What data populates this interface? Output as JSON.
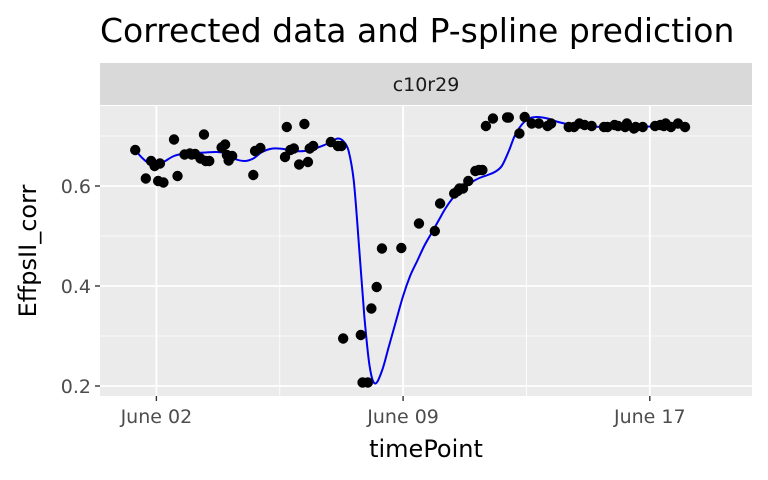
{
  "chart_data": {
    "type": "scatter",
    "title": "Corrected data and P-spline prediction",
    "facet": "c10r29",
    "xlabel": "timePoint",
    "ylabel": "EffpsII_corr",
    "x_ticks": [
      "June 02",
      "June 09",
      "June 17"
    ],
    "x_tick_values": [
      2,
      9,
      16
    ],
    "xlim": [
      0.4,
      18.9
    ],
    "y_ticks": [
      "0.2",
      "0.4",
      "0.6"
    ],
    "y_tick_values": [
      0.2,
      0.4,
      0.6
    ],
    "ylim": [
      0.18,
      0.76
    ],
    "grid": true,
    "legend": "none",
    "colors": {
      "panel": "#ebebeb",
      "strip": "#d9d9d9",
      "grid": "#ffffff",
      "points": "#000000",
      "line": "#0000ee"
    },
    "series": [
      {
        "kind": "points",
        "x": [
          1.4,
          1.7,
          1.85,
          1.95,
          2.05,
          2.1,
          2.2,
          2.5,
          2.6,
          2.8,
          2.95,
          3.0,
          3.1,
          3.25,
          3.35,
          3.4,
          3.5,
          3.85,
          3.95,
          4.0,
          4.05,
          4.15,
          4.75,
          4.8,
          4.95,
          5.65,
          5.7,
          5.8,
          5.9,
          6.05,
          6.2,
          6.3,
          6.35,
          6.45,
          6.95,
          7.15,
          7.25,
          7.3,
          7.8,
          7.85,
          8.0,
          8.1,
          8.25,
          8.4,
          8.95,
          9.45,
          9.9,
          10.05,
          10.45,
          10.55,
          10.6,
          10.7,
          10.85,
          11.05,
          11.15,
          11.25,
          11.35,
          11.55,
          11.95,
          12.0,
          12.3,
          12.45,
          12.65,
          12.85,
          13.1,
          13.2,
          13.7,
          13.85,
          14.0,
          14.15,
          14.35,
          14.7,
          14.8,
          15.0,
          15.1,
          15.3,
          15.35,
          15.55,
          15.6,
          15.8,
          16.15,
          16.3,
          16.4,
          16.45,
          16.6,
          16.8,
          17.0
        ],
        "y": [
          0.672,
          0.615,
          0.65,
          0.64,
          0.61,
          0.645,
          0.607,
          0.693,
          0.62,
          0.663,
          0.665,
          0.663,
          0.664,
          0.655,
          0.703,
          0.65,
          0.65,
          0.677,
          0.683,
          0.662,
          0.651,
          0.66,
          0.622,
          0.67,
          0.676,
          0.658,
          0.718,
          0.672,
          0.675,
          0.643,
          0.724,
          0.648,
          0.675,
          0.68,
          0.688,
          0.68,
          0.68,
          0.295,
          0.302,
          0.207,
          0.207,
          0.355,
          0.398,
          0.475,
          0.476,
          0.525,
          0.51,
          0.565,
          0.585,
          0.59,
          0.595,
          0.595,
          0.61,
          0.63,
          0.632,
          0.632,
          0.72,
          0.735,
          0.737,
          0.737,
          0.705,
          0.738,
          0.725,
          0.725,
          0.72,
          0.725,
          0.718,
          0.718,
          0.725,
          0.722,
          0.72,
          0.718,
          0.718,
          0.722,
          0.72,
          0.718,
          0.725,
          0.715,
          0.718,
          0.718,
          0.72,
          0.722,
          0.72,
          0.725,
          0.718,
          0.725,
          0.718
        ]
      },
      {
        "kind": "line",
        "x": [
          1.4,
          1.6,
          1.8,
          2.0,
          2.2,
          2.5,
          2.8,
          3.1,
          3.4,
          3.7,
          4.0,
          4.2,
          4.5,
          4.75,
          5.0,
          5.3,
          5.6,
          5.9,
          6.2,
          6.5,
          6.8,
          7.0,
          7.15,
          7.3,
          7.45,
          7.6,
          7.75,
          7.9,
          8.05,
          8.2,
          8.4,
          8.6,
          8.8,
          9.0,
          9.2,
          9.4,
          9.6,
          9.8,
          10.0,
          10.2,
          10.4,
          10.6,
          10.8,
          11.0,
          11.2,
          11.4,
          11.6,
          11.8,
          12.0,
          12.2,
          12.5,
          12.8,
          13.1,
          13.4,
          13.8,
          14.2,
          14.6,
          15.0,
          15.4,
          15.8,
          16.2,
          16.6,
          17.0
        ],
        "y": [
          0.672,
          0.656,
          0.645,
          0.642,
          0.648,
          0.66,
          0.665,
          0.666,
          0.667,
          0.668,
          0.665,
          0.655,
          0.65,
          0.655,
          0.668,
          0.675,
          0.674,
          0.67,
          0.67,
          0.675,
          0.683,
          0.69,
          0.695,
          0.69,
          0.671,
          0.61,
          0.48,
          0.34,
          0.24,
          0.205,
          0.23,
          0.28,
          0.33,
          0.38,
          0.42,
          0.45,
          0.48,
          0.505,
          0.53,
          0.555,
          0.575,
          0.59,
          0.6,
          0.61,
          0.617,
          0.622,
          0.628,
          0.64,
          0.67,
          0.705,
          0.732,
          0.738,
          0.735,
          0.728,
          0.722,
          0.72,
          0.718,
          0.718,
          0.718,
          0.718,
          0.72,
          0.72,
          0.718
        ]
      }
    ]
  }
}
